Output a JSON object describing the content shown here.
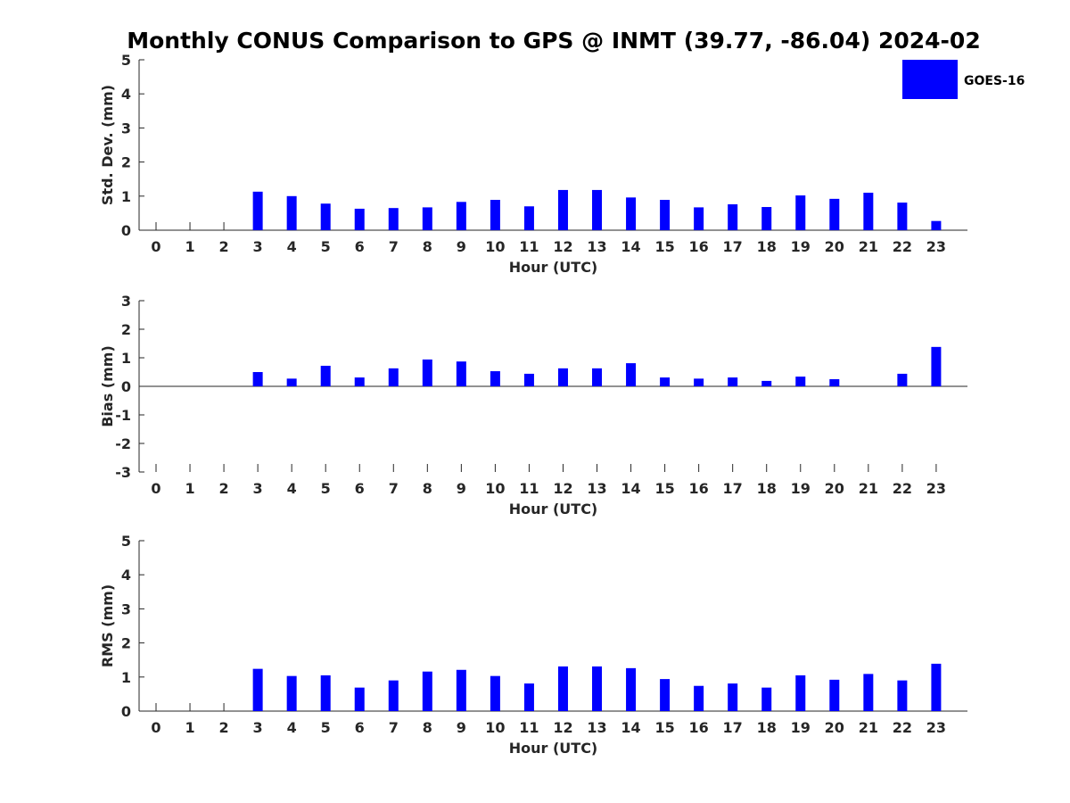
{
  "title": "Monthly CONUS Comparison to GPS @ INMT (39.77, -86.04) 2024-02",
  "legend": {
    "label": "GOES-16",
    "color": "#0000ff"
  },
  "chart_data": [
    {
      "type": "bar",
      "name": "std-dev",
      "ylabel": "Std. Dev. (mm)",
      "xlabel": "Hour (UTC)",
      "categories": [
        "0",
        "1",
        "2",
        "3",
        "4",
        "5",
        "6",
        "7",
        "8",
        "9",
        "10",
        "11",
        "12",
        "13",
        "14",
        "15",
        "16",
        "17",
        "18",
        "19",
        "20",
        "21",
        "22",
        "23"
      ],
      "ylim": [
        0,
        5
      ],
      "yticks": [
        "0",
        "1",
        "2",
        "3",
        "4",
        "5"
      ],
      "series": [
        {
          "name": "GOES-16",
          "values": [
            null,
            null,
            null,
            1.13,
            1.0,
            0.78,
            0.63,
            0.65,
            0.67,
            0.83,
            0.89,
            0.7,
            1.18,
            1.18,
            0.96,
            0.89,
            0.67,
            0.76,
            0.68,
            1.02,
            0.92,
            1.1,
            0.81,
            0.27
          ]
        }
      ],
      "legend": "top-right"
    },
    {
      "type": "bar",
      "name": "bias",
      "ylabel": "Bias (mm)",
      "xlabel": "Hour (UTC)",
      "categories": [
        "0",
        "1",
        "2",
        "3",
        "4",
        "5",
        "6",
        "7",
        "8",
        "9",
        "10",
        "11",
        "12",
        "13",
        "14",
        "15",
        "16",
        "17",
        "18",
        "19",
        "20",
        "21",
        "22",
        "23"
      ],
      "ylim": [
        -3,
        3
      ],
      "yticks": [
        "-3",
        "-2",
        "-1",
        "0",
        "1",
        "2",
        "3"
      ],
      "series": [
        {
          "name": "GOES-16",
          "values": [
            null,
            null,
            null,
            0.5,
            0.27,
            0.72,
            0.31,
            0.63,
            0.94,
            0.87,
            0.53,
            0.44,
            0.63,
            0.63,
            0.81,
            0.31,
            0.27,
            0.31,
            0.19,
            0.34,
            0.25,
            0.0,
            0.44,
            1.38
          ]
        }
      ]
    },
    {
      "type": "bar",
      "name": "rms",
      "ylabel": "RMS (mm)",
      "xlabel": "Hour (UTC)",
      "categories": [
        "0",
        "1",
        "2",
        "3",
        "4",
        "5",
        "6",
        "7",
        "8",
        "9",
        "10",
        "11",
        "12",
        "13",
        "14",
        "15",
        "16",
        "17",
        "18",
        "19",
        "20",
        "21",
        "22",
        "23"
      ],
      "ylim": [
        0,
        5
      ],
      "yticks": [
        "0",
        "1",
        "2",
        "3",
        "4",
        "5"
      ],
      "series": [
        {
          "name": "GOES-16",
          "values": [
            null,
            null,
            null,
            1.24,
            1.03,
            1.05,
            0.69,
            0.9,
            1.16,
            1.21,
            1.03,
            0.81,
            1.31,
            1.31,
            1.26,
            0.94,
            0.74,
            0.81,
            0.69,
            1.05,
            0.92,
            1.09,
            0.9,
            1.39
          ]
        }
      ]
    }
  ]
}
